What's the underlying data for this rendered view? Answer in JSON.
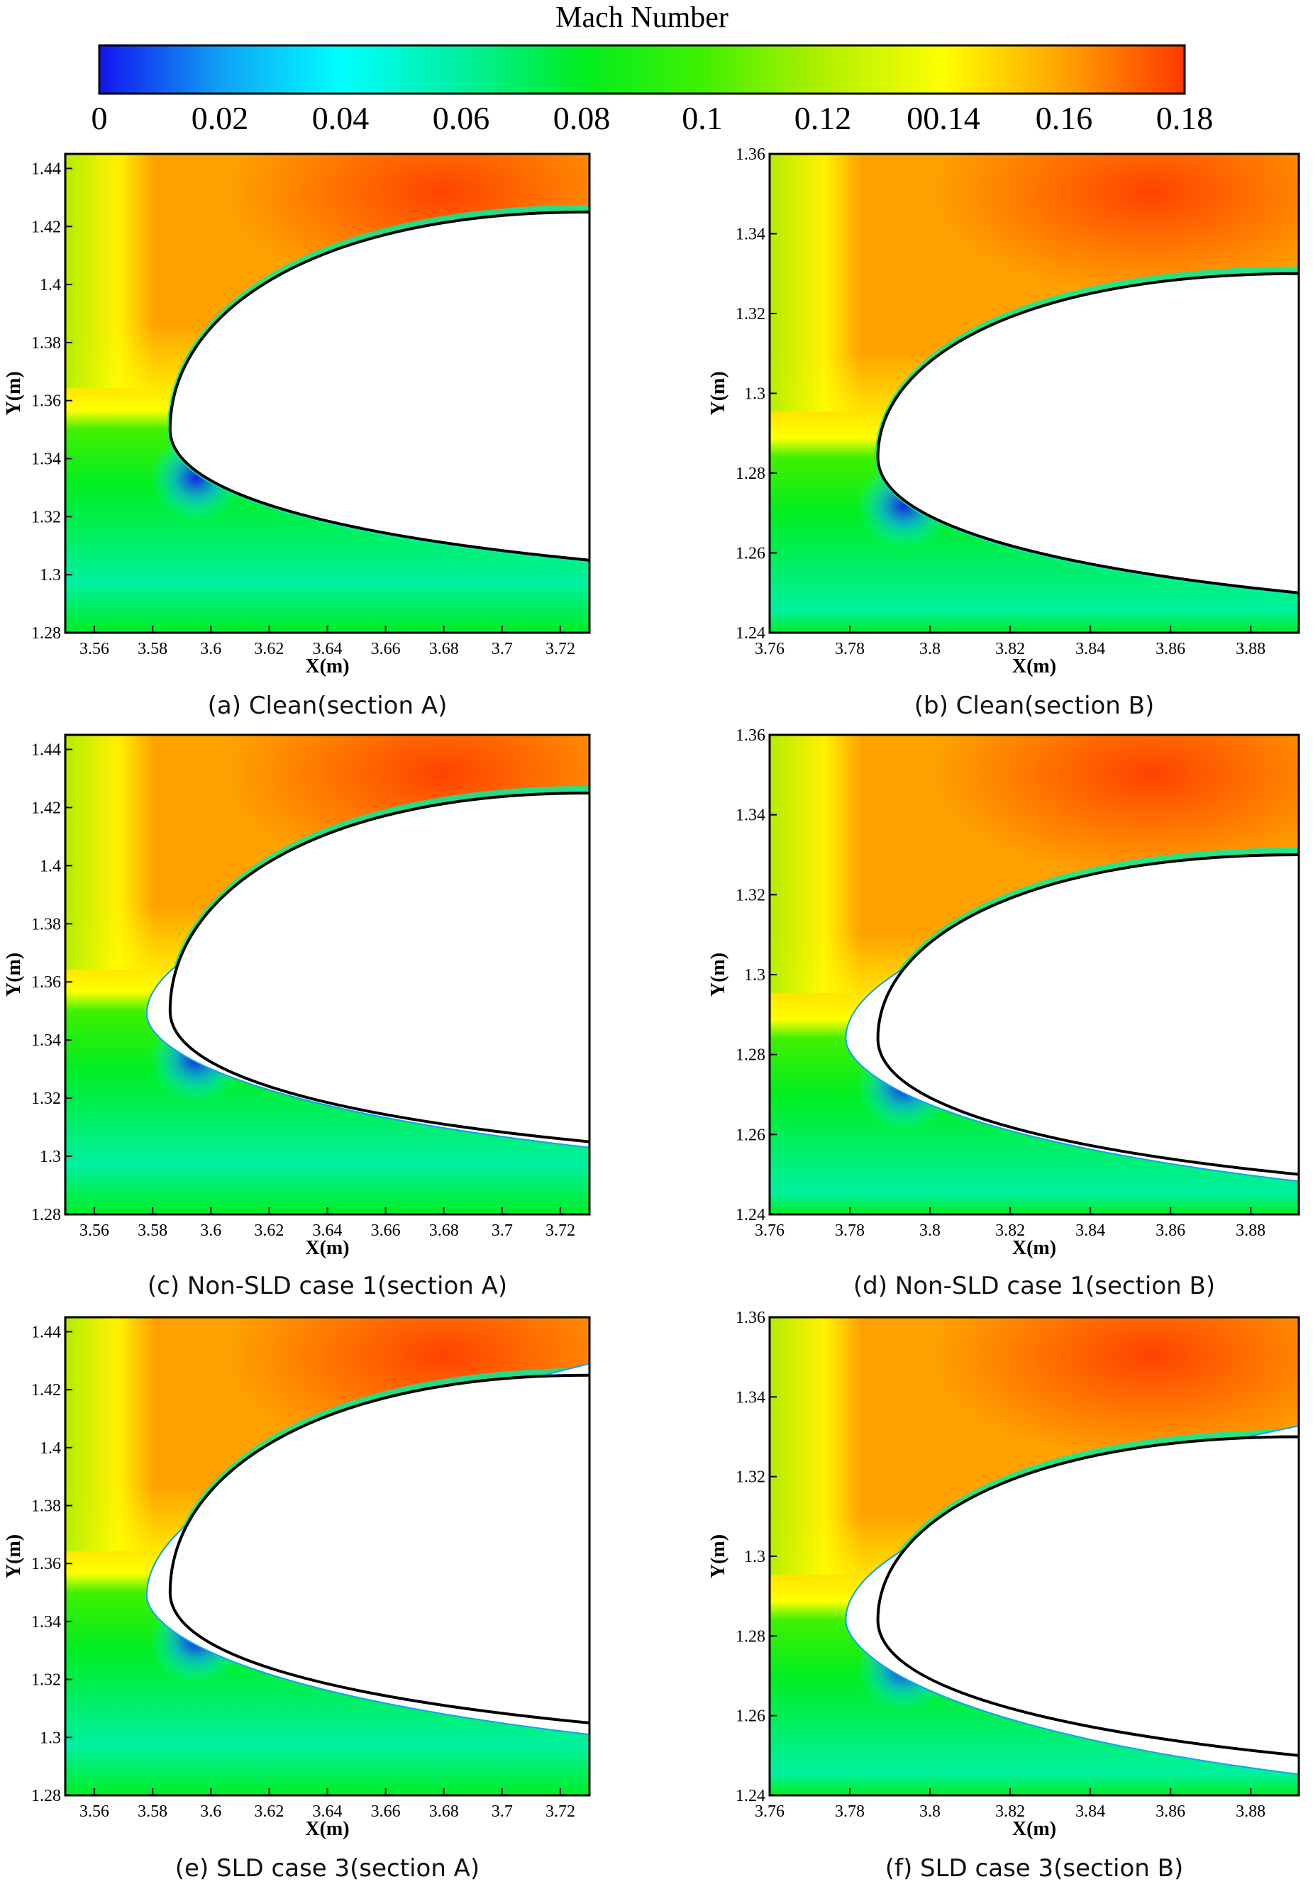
{
  "colorbar": {
    "title": "Mach Number",
    "labels": [
      "0",
      "0.02",
      "0.04",
      "0.06",
      "0.08",
      "0.1",
      "0.12",
      "00.14",
      "0.16",
      "0.18"
    ],
    "stops": [
      "#1414ee",
      "#0fa0f5",
      "#00ffff",
      "#00f0a0",
      "#00ee22",
      "#40f000",
      "#b0f000",
      "#ffff00",
      "#ffa200",
      "#ff3800"
    ]
  },
  "chart_data": [
    {
      "type": "heatmap",
      "caption": "(a) Clean(section A)",
      "xlabel": "X(m)",
      "ylabel": "Y(m)",
      "xlim": [
        3.55,
        3.73
      ],
      "ylim": [
        1.28,
        1.445
      ],
      "xticks": [
        "3.56",
        "3.58",
        "3.6",
        "3.62",
        "3.64",
        "3.66",
        "3.68",
        "3.7",
        "3.72"
      ],
      "yticks": [
        "1.28",
        "1.3",
        "1.32",
        "1.34",
        "1.36",
        "1.38",
        "1.4",
        "1.42",
        "1.44"
      ],
      "airfoil": {
        "le": [
          3.586,
          1.35
        ],
        "upper_te": [
          3.73,
          1.425
        ],
        "lower_te": [
          3.73,
          1.305
        ]
      },
      "ice": null
    },
    {
      "type": "heatmap",
      "caption": "(b) Clean(section B)",
      "xlabel": "X(m)",
      "ylabel": "Y(m)",
      "xlim": [
        3.76,
        3.892
      ],
      "ylim": [
        1.24,
        1.36
      ],
      "xticks": [
        "3.76",
        "3.78",
        "3.8",
        "3.82",
        "3.84",
        "3.86",
        "3.88"
      ],
      "yticks": [
        "1.24",
        "1.26",
        "1.28",
        "1.3",
        "1.32",
        "1.34",
        "1.36"
      ],
      "airfoil": {
        "le": [
          3.787,
          1.284
        ],
        "upper_te": [
          3.892,
          1.33
        ],
        "lower_te": [
          3.892,
          1.25
        ]
      },
      "ice": null
    },
    {
      "type": "heatmap",
      "caption": "(c) Non-SLD case 1(section A)",
      "xlabel": "X(m)",
      "ylabel": "Y(m)",
      "xlim": [
        3.55,
        3.73
      ],
      "ylim": [
        1.28,
        1.445
      ],
      "xticks": [
        "3.56",
        "3.58",
        "3.6",
        "3.62",
        "3.64",
        "3.66",
        "3.68",
        "3.7",
        "3.72"
      ],
      "yticks": [
        "1.28",
        "1.3",
        "1.32",
        "1.34",
        "1.36",
        "1.38",
        "1.4",
        "1.42",
        "1.44"
      ],
      "airfoil": {
        "le": [
          3.586,
          1.35
        ],
        "upper_te": [
          3.73,
          1.425
        ],
        "lower_te": [
          3.73,
          1.305
        ]
      },
      "ice": {
        "le": [
          3.578,
          1.349
        ],
        "upper_end": [
          3.605,
          1.375
        ],
        "lower_end": [
          3.73,
          1.304
        ]
      }
    },
    {
      "type": "heatmap",
      "caption": "(d) Non-SLD case 1(section B)",
      "xlabel": "X(m)",
      "ylabel": "Y(m)",
      "xlim": [
        3.76,
        3.892
      ],
      "ylim": [
        1.24,
        1.36
      ],
      "xticks": [
        "3.76",
        "3.78",
        "3.8",
        "3.82",
        "3.84",
        "3.86",
        "3.88"
      ],
      "yticks": [
        "1.24",
        "1.26",
        "1.28",
        "1.3",
        "1.32",
        "1.34",
        "1.36"
      ],
      "airfoil": {
        "le": [
          3.787,
          1.284
        ],
        "upper_te": [
          3.892,
          1.33
        ],
        "lower_te": [
          3.892,
          1.25
        ]
      },
      "ice": {
        "le": [
          3.779,
          1.284
        ],
        "upper_end": [
          3.808,
          1.308
        ],
        "lower_end": [
          3.892,
          1.249
        ]
      }
    },
    {
      "type": "heatmap",
      "caption": "(e) SLD case 3(section A)",
      "xlabel": "X(m)",
      "ylabel": "Y(m)",
      "xlim": [
        3.55,
        3.73
      ],
      "ylim": [
        1.28,
        1.445
      ],
      "xticks": [
        "3.56",
        "3.58",
        "3.6",
        "3.62",
        "3.64",
        "3.66",
        "3.68",
        "3.7",
        "3.72"
      ],
      "yticks": [
        "1.28",
        "1.3",
        "1.32",
        "1.34",
        "1.36",
        "1.38",
        "1.4",
        "1.42",
        "1.44"
      ],
      "airfoil": {
        "le": [
          3.586,
          1.35
        ],
        "upper_te": [
          3.73,
          1.425
        ],
        "lower_te": [
          3.73,
          1.305
        ]
      },
      "ice": {
        "le": [
          3.578,
          1.349
        ],
        "upper_end": [
          3.73,
          1.428
        ],
        "lower_end": [
          3.73,
          1.302
        ]
      }
    },
    {
      "type": "heatmap",
      "caption": "(f) SLD case 3(section B)",
      "xlabel": "X(m)",
      "ylabel": "Y(m)",
      "xlim": [
        3.76,
        3.892
      ],
      "ylim": [
        1.24,
        1.36
      ],
      "xticks": [
        "3.76",
        "3.78",
        "3.8",
        "3.82",
        "3.84",
        "3.86",
        "3.88"
      ],
      "yticks": [
        "1.24",
        "1.26",
        "1.28",
        "1.3",
        "1.32",
        "1.34",
        "1.36"
      ],
      "airfoil": {
        "le": [
          3.787,
          1.284
        ],
        "upper_te": [
          3.892,
          1.33
        ],
        "lower_te": [
          3.892,
          1.25
        ]
      },
      "ice": {
        "le": [
          3.779,
          1.284
        ],
        "upper_end": [
          3.892,
          1.332
        ],
        "lower_end": [
          3.892,
          1.246
        ]
      }
    }
  ]
}
